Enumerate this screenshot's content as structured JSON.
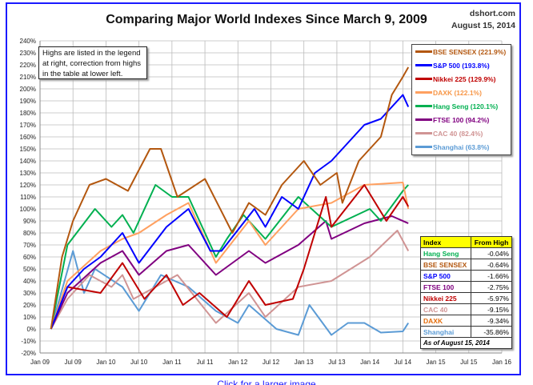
{
  "title": "Comparing Major World Indexes Since March 9, 2009",
  "source": "dshort.com",
  "date": "August 15, 2014",
  "note": "Highs are listed in the legend at right, correction from highs in the table at lower left.",
  "link": "Click for a larger image",
  "chart_data": {
    "type": "line",
    "title": "Comparing Major World Indexes Since March 9, 2009",
    "ylim": [
      -20,
      240
    ],
    "yticks": [
      "-20%",
      "-10%",
      "0%",
      "10%",
      "20%",
      "30%",
      "40%",
      "50%",
      "60%",
      "70%",
      "80%",
      "90%",
      "100%",
      "110%",
      "120%",
      "130%",
      "140%",
      "150%",
      "160%",
      "170%",
      "180%",
      "190%",
      "200%",
      "210%",
      "220%",
      "230%",
      "240%"
    ],
    "xlim": [
      "2009-01",
      "2016-01"
    ],
    "xticks": [
      "Jan 09",
      "Jul 09",
      "Jan 10",
      "Jul 10",
      "Jan 11",
      "Jul 11",
      "Jan 12",
      "Jul 12",
      "Jan 13",
      "Jul 13",
      "Jan 14",
      "Jul 14",
      "Jan 15",
      "Jul 15",
      "Jan 16"
    ],
    "grid": true,
    "legend_placement": "top-right",
    "series": [
      {
        "name": "BSE SENSEX (221.9%)",
        "color": "#b3570f",
        "points": [
          [
            "2009-03",
            0
          ],
          [
            "2009-05",
            60
          ],
          [
            "2009-07",
            90
          ],
          [
            "2009-10",
            120
          ],
          [
            "2010-01",
            125
          ],
          [
            "2010-05",
            115
          ],
          [
            "2010-09",
            150
          ],
          [
            "2010-11",
            150
          ],
          [
            "2011-02",
            110
          ],
          [
            "2011-07",
            125
          ],
          [
            "2011-12",
            80
          ],
          [
            "2012-03",
            105
          ],
          [
            "2012-06",
            95
          ],
          [
            "2012-09",
            120
          ],
          [
            "2013-01",
            140
          ],
          [
            "2013-04",
            120
          ],
          [
            "2013-07",
            130
          ],
          [
            "2013-08",
            105
          ],
          [
            "2013-11",
            140
          ],
          [
            "2014-01",
            150
          ],
          [
            "2014-03",
            160
          ],
          [
            "2014-05",
            195
          ],
          [
            "2014-07",
            210
          ],
          [
            "2014-08",
            218
          ]
        ]
      },
      {
        "name": "S&P 500 (193.8%)",
        "color": "#0000ff",
        "points": [
          [
            "2009-03",
            0
          ],
          [
            "2009-06",
            35
          ],
          [
            "2009-09",
            50
          ],
          [
            "2009-12",
            60
          ],
          [
            "2010-04",
            80
          ],
          [
            "2010-07",
            55
          ],
          [
            "2010-12",
            85
          ],
          [
            "2011-04",
            100
          ],
          [
            "2011-08",
            65
          ],
          [
            "2011-10",
            65
          ],
          [
            "2012-04",
            100
          ],
          [
            "2012-06",
            85
          ],
          [
            "2012-09",
            110
          ],
          [
            "2012-12",
            100
          ],
          [
            "2013-03",
            130
          ],
          [
            "2013-06",
            140
          ],
          [
            "2013-09",
            155
          ],
          [
            "2013-12",
            170
          ],
          [
            "2014-03",
            175
          ],
          [
            "2014-07",
            195
          ],
          [
            "2014-08",
            185
          ]
        ]
      },
      {
        "name": "Nikkei 225 (129.9%)",
        "color": "#c00000",
        "points": [
          [
            "2009-03",
            0
          ],
          [
            "2009-06",
            35
          ],
          [
            "2009-12",
            30
          ],
          [
            "2010-04",
            55
          ],
          [
            "2010-08",
            25
          ],
          [
            "2010-12",
            45
          ],
          [
            "2011-03",
            20
          ],
          [
            "2011-06",
            30
          ],
          [
            "2011-11",
            10
          ],
          [
            "2012-03",
            40
          ],
          [
            "2012-06",
            20
          ],
          [
            "2012-11",
            25
          ],
          [
            "2013-01",
            50
          ],
          [
            "2013-05",
            110
          ],
          [
            "2013-06",
            85
          ],
          [
            "2013-12",
            120
          ],
          [
            "2014-04",
            90
          ],
          [
            "2014-07",
            110
          ],
          [
            "2014-08",
            102
          ]
        ]
      },
      {
        "name": "DAXK (122.1%)",
        "color": "#ffa060",
        "points": [
          [
            "2009-03",
            0
          ],
          [
            "2009-06",
            40
          ],
          [
            "2009-12",
            65
          ],
          [
            "2010-04",
            75
          ],
          [
            "2010-07",
            80
          ],
          [
            "2010-12",
            95
          ],
          [
            "2011-04",
            105
          ],
          [
            "2011-09",
            55
          ],
          [
            "2012-03",
            90
          ],
          [
            "2012-06",
            70
          ],
          [
            "2012-12",
            100
          ],
          [
            "2013-06",
            105
          ],
          [
            "2013-12",
            120
          ],
          [
            "2014-07",
            122
          ],
          [
            "2014-08",
            100
          ]
        ]
      },
      {
        "name": "Hang Seng (120.1%)",
        "color": "#00b050",
        "points": [
          [
            "2009-03",
            0
          ],
          [
            "2009-06",
            70
          ],
          [
            "2009-11",
            100
          ],
          [
            "2010-02",
            85
          ],
          [
            "2010-04",
            95
          ],
          [
            "2010-06",
            80
          ],
          [
            "2010-10",
            120
          ],
          [
            "2011-01",
            110
          ],
          [
            "2011-04",
            110
          ],
          [
            "2011-09",
            60
          ],
          [
            "2011-11",
            75
          ],
          [
            "2012-02",
            95
          ],
          [
            "2012-06",
            75
          ],
          [
            "2012-12",
            110
          ],
          [
            "2013-06",
            85
          ],
          [
            "2014-01",
            100
          ],
          [
            "2014-03",
            90
          ],
          [
            "2014-07",
            115
          ],
          [
            "2014-08",
            120
          ]
        ]
      },
      {
        "name": "FTSE 100 (94.2%)",
        "color": "#800080",
        "points": [
          [
            "2009-03",
            0
          ],
          [
            "2009-06",
            30
          ],
          [
            "2009-12",
            55
          ],
          [
            "2010-04",
            65
          ],
          [
            "2010-07",
            45
          ],
          [
            "2010-12",
            65
          ],
          [
            "2011-04",
            70
          ],
          [
            "2011-09",
            45
          ],
          [
            "2012-03",
            65
          ],
          [
            "2012-06",
            55
          ],
          [
            "2012-12",
            70
          ],
          [
            "2013-05",
            90
          ],
          [
            "2013-06",
            75
          ],
          [
            "2013-12",
            88
          ],
          [
            "2014-05",
            94
          ],
          [
            "2014-08",
            88
          ]
        ]
      },
      {
        "name": "CAC 40 (82.4%)",
        "color": "#d09494",
        "points": [
          [
            "2009-03",
            0
          ],
          [
            "2009-06",
            25
          ],
          [
            "2009-10",
            45
          ],
          [
            "2010-02",
            35
          ],
          [
            "2010-04",
            45
          ],
          [
            "2010-06",
            25
          ],
          [
            "2011-02",
            45
          ],
          [
            "2011-09",
            5
          ],
          [
            "2012-03",
            30
          ],
          [
            "2012-06",
            10
          ],
          [
            "2012-12",
            35
          ],
          [
            "2013-06",
            40
          ],
          [
            "2014-01",
            60
          ],
          [
            "2014-06",
            82
          ],
          [
            "2014-08",
            65
          ]
        ]
      },
      {
        "name": "Shanghai (63.8%)",
        "color": "#5b9bd5",
        "points": [
          [
            "2009-03",
            0
          ],
          [
            "2009-07",
            65
          ],
          [
            "2009-09",
            30
          ],
          [
            "2009-11",
            50
          ],
          [
            "2010-04",
            35
          ],
          [
            "2010-07",
            15
          ],
          [
            "2010-11",
            45
          ],
          [
            "2011-04",
            35
          ],
          [
            "2011-09",
            15
          ],
          [
            "2012-01",
            5
          ],
          [
            "2012-03",
            20
          ],
          [
            "2012-08",
            0
          ],
          [
            "2012-12",
            -5
          ],
          [
            "2013-02",
            20
          ],
          [
            "2013-06",
            -5
          ],
          [
            "2013-09",
            5
          ],
          [
            "2013-12",
            5
          ],
          [
            "2014-03",
            -3
          ],
          [
            "2014-07",
            -2
          ],
          [
            "2014-08",
            5
          ]
        ]
      }
    ]
  },
  "table": {
    "headers": [
      "Index",
      "From High"
    ],
    "rows": [
      {
        "name": "Hang Seng",
        "value": "-0.04%",
        "color": "#00b050"
      },
      {
        "name": "BSE SENSEX",
        "value": "-0.64%",
        "color": "#b3570f"
      },
      {
        "name": "S&P 500",
        "value": "-1.66%",
        "color": "#0000ff"
      },
      {
        "name": "FTSE 100",
        "value": "-2.75%",
        "color": "#800080"
      },
      {
        "name": "Nikkei 225",
        "value": "-5.97%",
        "color": "#c00000"
      },
      {
        "name": "CAC 40",
        "value": "-9.15%",
        "color": "#d09494"
      },
      {
        "name": "DAXK",
        "value": "-9.34%",
        "color": "#e46c0a"
      },
      {
        "name": "Shanghai",
        "value": "-35.86%",
        "color": "#5b9bd5"
      }
    ],
    "footer": "As of August 15, 2014"
  }
}
